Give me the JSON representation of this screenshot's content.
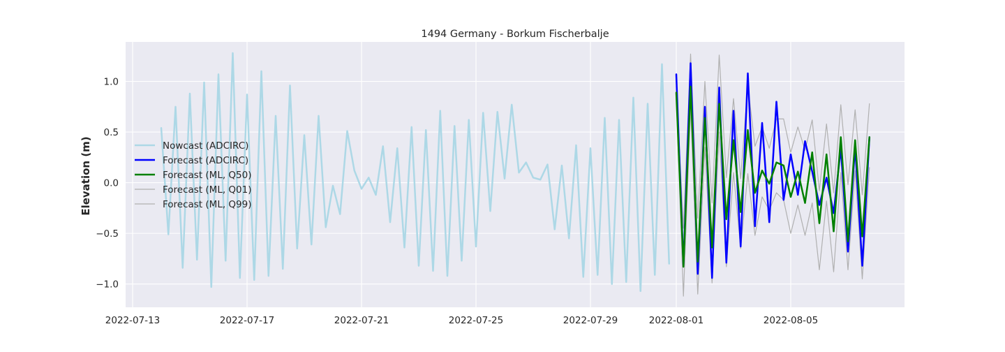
{
  "chart_data": {
    "type": "line",
    "title": "1494 Germany - Borkum Fischerbalje",
    "xlabel": "",
    "ylabel": "Elevation (m)",
    "x_ticks": [
      "2022-07-13",
      "2022-07-17",
      "2022-07-21",
      "2022-07-25",
      "2022-07-29",
      "2022-08-01",
      "2022-08-05"
    ],
    "y_ticks": [
      "1.0",
      "0.5",
      "0.0",
      "−0.5",
      "−1.0"
    ],
    "ylim": [
      -1.23,
      1.39
    ],
    "grid": true,
    "legend": "center-left",
    "background": "#eaeaf2",
    "series": [
      {
        "name": "Nowcast (ADCIRC)",
        "color": "#add8e6",
        "linewidth": 2.5,
        "dates": [
          "2022-07-14 00:00",
          "2022-07-14 06:00",
          "2022-07-14 12:00",
          "2022-07-14 18:00",
          "2022-07-15 00:00",
          "2022-07-15 06:00",
          "2022-07-15 12:00",
          "2022-07-15 18:00",
          "2022-07-16 00:00",
          "2022-07-16 06:00",
          "2022-07-16 12:00",
          "2022-07-16 18:00",
          "2022-07-17 00:00",
          "2022-07-17 06:00",
          "2022-07-17 12:00",
          "2022-07-17 18:00",
          "2022-07-18 00:00",
          "2022-07-18 06:00",
          "2022-07-18 12:00",
          "2022-07-18 18:00",
          "2022-07-19 00:00",
          "2022-07-19 06:00",
          "2022-07-19 12:00",
          "2022-07-19 18:00",
          "2022-07-20 00:00",
          "2022-07-20 06:00",
          "2022-07-20 12:00",
          "2022-07-20 18:00",
          "2022-07-21 00:00",
          "2022-07-21 06:00",
          "2022-07-21 12:00",
          "2022-07-21 18:00",
          "2022-07-22 00:00",
          "2022-07-22 06:00",
          "2022-07-22 12:00",
          "2022-07-22 18:00",
          "2022-07-23 00:00",
          "2022-07-23 06:00",
          "2022-07-23 12:00",
          "2022-07-23 18:00",
          "2022-07-24 00:00",
          "2022-07-24 06:00",
          "2022-07-24 12:00",
          "2022-07-24 18:00",
          "2022-07-25 00:00",
          "2022-07-25 06:00",
          "2022-07-25 12:00",
          "2022-07-25 18:00",
          "2022-07-26 00:00",
          "2022-07-26 06:00",
          "2022-07-26 12:00",
          "2022-07-26 18:00",
          "2022-07-27 00:00",
          "2022-07-27 06:00",
          "2022-07-27 12:00",
          "2022-07-27 18:00",
          "2022-07-28 00:00",
          "2022-07-28 06:00",
          "2022-07-28 12:00",
          "2022-07-28 18:00",
          "2022-07-29 00:00",
          "2022-07-29 06:00",
          "2022-07-29 12:00",
          "2022-07-29 18:00",
          "2022-07-30 00:00",
          "2022-07-30 06:00",
          "2022-07-30 12:00",
          "2022-07-30 18:00",
          "2022-07-31 00:00",
          "2022-07-31 06:00",
          "2022-07-31 12:00",
          "2022-07-31 18:00"
        ],
        "values": [
          0.54,
          -0.51,
          0.75,
          -0.84,
          0.88,
          -0.76,
          0.99,
          -1.03,
          1.07,
          -0.77,
          1.28,
          -0.94,
          0.87,
          -0.96,
          1.1,
          -0.92,
          0.66,
          -0.85,
          0.96,
          -0.65,
          0.47,
          -0.61,
          0.66,
          -0.44,
          -0.03,
          -0.31,
          0.51,
          0.12,
          -0.06,
          0.05,
          -0.12,
          0.36,
          -0.39,
          0.34,
          -0.64,
          0.55,
          -0.82,
          0.52,
          -0.87,
          0.71,
          -0.92,
          0.56,
          -0.77,
          0.62,
          -0.63,
          0.69,
          -0.28,
          0.7,
          0.04,
          0.77,
          0.1,
          0.2,
          0.05,
          0.03,
          0.18,
          -0.46,
          0.17,
          -0.55,
          0.37,
          -0.93,
          0.34,
          -0.91,
          0.64,
          -1.0,
          0.62,
          -0.98,
          0.84,
          -1.07,
          0.78,
          -0.91,
          1.17,
          -0.8
        ]
      },
      {
        "name": "Forecast (ADCIRC)",
        "color": "#0000ff",
        "linewidth": 2.5,
        "dates": [
          "2022-08-01 00:00",
          "2022-08-01 06:00",
          "2022-08-01 12:00",
          "2022-08-01 18:00",
          "2022-08-02 00:00",
          "2022-08-02 06:00",
          "2022-08-02 12:00",
          "2022-08-02 18:00",
          "2022-08-03 00:00",
          "2022-08-03 06:00",
          "2022-08-03 12:00",
          "2022-08-03 18:00",
          "2022-08-04 00:00",
          "2022-08-04 06:00",
          "2022-08-04 12:00",
          "2022-08-04 18:00",
          "2022-08-05 00:00",
          "2022-08-05 06:00",
          "2022-08-05 12:00",
          "2022-08-05 18:00",
          "2022-08-06 00:00",
          "2022-08-06 06:00",
          "2022-08-06 12:00",
          "2022-08-06 18:00",
          "2022-08-07 00:00",
          "2022-08-07 06:00",
          "2022-08-07 12:00",
          "2022-08-07 18:00"
        ],
        "values": [
          1.07,
          -0.82,
          1.18,
          -0.9,
          0.75,
          -0.94,
          0.94,
          -0.79,
          0.71,
          -0.63,
          1.08,
          -0.43,
          0.59,
          -0.39,
          0.8,
          -0.17,
          0.28,
          -0.12,
          0.41,
          0.11,
          -0.22,
          0.05,
          -0.3,
          0.34,
          -0.68,
          0.36,
          -0.82,
          0.45
        ]
      },
      {
        "name": "Forecast (ML, Q50)",
        "color": "#008000",
        "linewidth": 2.5,
        "dates": [
          "2022-08-01 00:00",
          "2022-08-01 06:00",
          "2022-08-01 12:00",
          "2022-08-01 18:00",
          "2022-08-02 00:00",
          "2022-08-02 06:00",
          "2022-08-02 12:00",
          "2022-08-02 18:00",
          "2022-08-03 00:00",
          "2022-08-03 06:00",
          "2022-08-03 12:00",
          "2022-08-03 18:00",
          "2022-08-04 00:00",
          "2022-08-04 06:00",
          "2022-08-04 12:00",
          "2022-08-04 18:00",
          "2022-08-05 00:00",
          "2022-08-05 06:00",
          "2022-08-05 12:00",
          "2022-08-05 18:00",
          "2022-08-06 00:00",
          "2022-08-06 06:00",
          "2022-08-06 12:00",
          "2022-08-06 18:00",
          "2022-08-07 00:00",
          "2022-08-07 06:00",
          "2022-08-07 12:00",
          "2022-08-07 18:00"
        ],
        "values": [
          0.89,
          -0.83,
          0.95,
          -0.78,
          0.64,
          -0.64,
          0.78,
          -0.36,
          0.42,
          -0.29,
          0.52,
          -0.1,
          0.12,
          -0.01,
          0.2,
          0.17,
          -0.14,
          0.11,
          -0.2,
          0.3,
          -0.4,
          0.28,
          -0.48,
          0.45,
          -0.58,
          0.42,
          -0.53,
          0.45
        ]
      },
      {
        "name": "Forecast (ML, Q01)",
        "color": "#b0b0b0",
        "linewidth": 1.2,
        "dates": [
          "2022-08-01 00:00",
          "2022-08-01 06:00",
          "2022-08-01 12:00",
          "2022-08-01 18:00",
          "2022-08-02 00:00",
          "2022-08-02 06:00",
          "2022-08-02 12:00",
          "2022-08-02 18:00",
          "2022-08-03 00:00",
          "2022-08-03 06:00",
          "2022-08-03 12:00",
          "2022-08-03 18:00",
          "2022-08-04 00:00",
          "2022-08-04 06:00",
          "2022-08-04 12:00",
          "2022-08-04 18:00",
          "2022-08-05 00:00",
          "2022-08-05 06:00",
          "2022-08-05 12:00",
          "2022-08-05 18:00",
          "2022-08-06 00:00",
          "2022-08-06 06:00",
          "2022-08-06 12:00",
          "2022-08-06 18:00",
          "2022-08-07 00:00",
          "2022-08-07 06:00",
          "2022-08-07 12:00",
          "2022-08-07 18:00"
        ],
        "values": [
          0.85,
          -1.12,
          0.75,
          -1.1,
          0.35,
          -0.99,
          0.5,
          -0.83,
          0.1,
          -0.65,
          0.09,
          -0.52,
          -0.14,
          -0.27,
          -0.1,
          -0.17,
          -0.5,
          -0.22,
          -0.52,
          -0.2,
          -0.86,
          -0.18,
          -0.88,
          0.1,
          -0.86,
          0.12,
          -0.95,
          0.15
        ]
      },
      {
        "name": "Forecast (ML, Q99)",
        "color": "#b0b0b0",
        "linewidth": 1.2,
        "dates": [
          "2022-08-01 00:00",
          "2022-08-01 06:00",
          "2022-08-01 12:00",
          "2022-08-01 18:00",
          "2022-08-02 00:00",
          "2022-08-02 06:00",
          "2022-08-02 12:00",
          "2022-08-02 18:00",
          "2022-08-03 00:00",
          "2022-08-03 06:00",
          "2022-08-03 12:00",
          "2022-08-03 18:00",
          "2022-08-04 00:00",
          "2022-08-04 06:00",
          "2022-08-04 12:00",
          "2022-08-04 18:00",
          "2022-08-05 00:00",
          "2022-08-05 06:00",
          "2022-08-05 12:00",
          "2022-08-05 18:00",
          "2022-08-06 00:00",
          "2022-08-06 06:00",
          "2022-08-06 12:00",
          "2022-08-06 18:00",
          "2022-08-07 00:00",
          "2022-08-07 06:00",
          "2022-08-07 12:00",
          "2022-08-07 18:00"
        ],
        "values": [
          0.95,
          -0.45,
          1.27,
          -0.35,
          1.0,
          -0.2,
          1.26,
          0.05,
          0.83,
          0.04,
          0.96,
          0.36,
          0.55,
          0.34,
          0.63,
          0.63,
          0.3,
          0.55,
          0.32,
          0.62,
          -0.08,
          0.58,
          -0.1,
          0.77,
          -0.02,
          0.72,
          -0.12,
          0.78
        ]
      }
    ]
  }
}
